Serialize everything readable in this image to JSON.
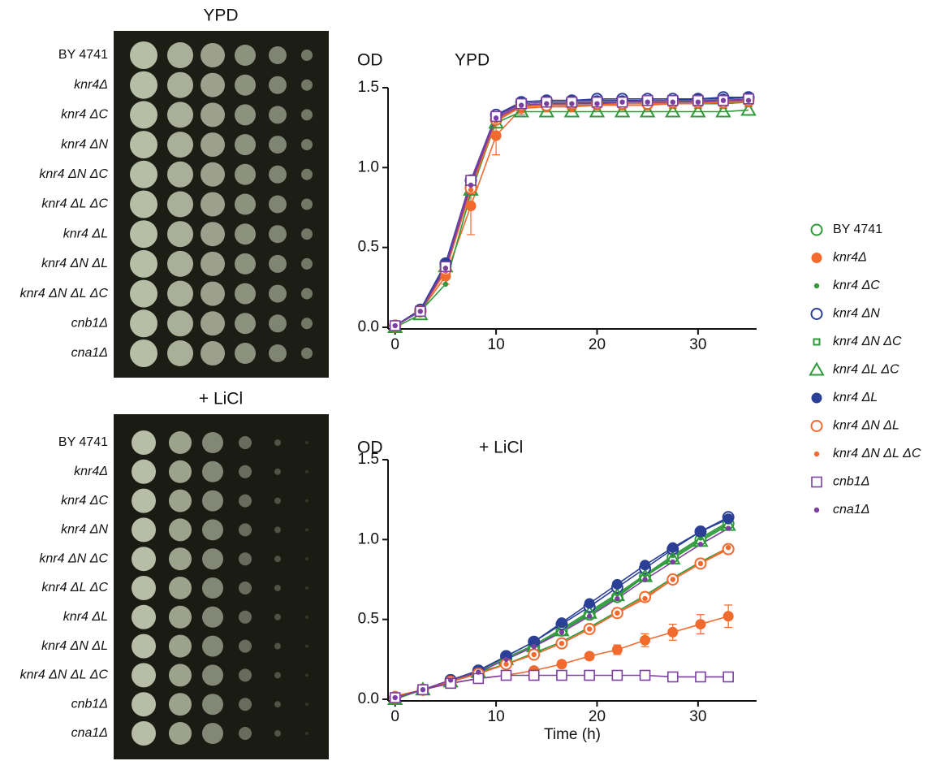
{
  "plates": [
    {
      "title": "YPD",
      "strains": [
        "BY 4741",
        "knr4Δ",
        "knr4 ΔC",
        "knr4 ΔN",
        "knr4 ΔN ΔC",
        "knr4 ΔL ΔC",
        "knr4 ΔL",
        "knr4 ΔN ΔL",
        "knr4 ΔN ΔL ΔC",
        "cnb1Δ",
        "cna1Δ"
      ]
    },
    {
      "title": "+ LiCl",
      "strains": [
        "BY 4741",
        "knr4Δ",
        "knr4 ΔC",
        "knr4 ΔN",
        "knr4 ΔN ΔC",
        "knr4 ΔL ΔC",
        "knr4 ΔL",
        "knr4 ΔN ΔL",
        "knr4 ΔN ΔL ΔC",
        "cnb1Δ",
        "cna1Δ"
      ]
    }
  ],
  "chart_data": [
    {
      "type": "line",
      "title": "YPD",
      "y_label": "OD",
      "x": [
        0,
        2.5,
        5,
        7.5,
        10,
        12.5,
        15,
        17.5,
        20,
        22.5,
        25,
        27.5,
        30,
        32.5,
        35
      ],
      "xlim": [
        -0.7,
        35.8
      ],
      "ylim": [
        0,
        1.5
      ],
      "xticks": [
        0,
        10,
        20,
        30
      ],
      "yticks": [
        {
          "value": 0,
          "label": "0.0"
        },
        {
          "value": 0.5,
          "label": "0.5"
        },
        {
          "value": 1,
          "label": "1.0"
        },
        {
          "value": 1.5,
          "label": "1.5"
        }
      ],
      "series": [
        {
          "name": "BY 4741",
          "color": "#2e9a3a",
          "marker": "open-circle",
          "values": [
            0.01,
            0.1,
            0.38,
            0.88,
            1.3,
            1.39,
            1.4,
            1.4,
            1.41,
            1.41,
            1.41,
            1.41,
            1.42,
            1.42,
            1.43
          ]
        },
        {
          "name": "knr4Δ",
          "color": "#f26a2e",
          "marker": "filled-circle",
          "values": [
            0.01,
            0.1,
            0.32,
            0.76,
            1.2,
            1.37,
            1.38,
            1.38,
            1.39,
            1.39,
            1.39,
            1.4,
            1.4,
            1.4,
            1.41
          ],
          "errors": [
            0.01,
            0.02,
            0.05,
            0.18,
            0.12,
            0.04,
            0.03,
            0.03,
            0.03,
            0.03,
            0.03,
            0.03,
            0.03,
            0.03,
            0.03
          ]
        },
        {
          "name": "knr4 ΔC",
          "color": "#2e9a3a",
          "marker": "dot",
          "values": [
            0.01,
            0.1,
            0.27,
            0.84,
            1.29,
            1.39,
            1.4,
            1.4,
            1.4,
            1.41,
            1.41,
            1.41,
            1.41,
            1.42,
            1.42
          ]
        },
        {
          "name": "knr4 ΔN",
          "color": "#2b3f97",
          "marker": "open-circle",
          "values": [
            0.01,
            0.11,
            0.4,
            0.92,
            1.33,
            1.41,
            1.42,
            1.42,
            1.43,
            1.43,
            1.43,
            1.43,
            1.43,
            1.44,
            1.44
          ]
        },
        {
          "name": "knr4 ΔN ΔC",
          "color": "#2e9a3a",
          "marker": "small-square",
          "values": [
            0.01,
            0.1,
            0.37,
            0.9,
            1.31,
            1.38,
            1.39,
            1.39,
            1.39,
            1.4,
            1.4,
            1.4,
            1.4,
            1.4,
            1.41
          ]
        },
        {
          "name": "knr4 ΔL ΔC",
          "color": "#2e9a3a",
          "marker": "triangle",
          "values": [
            0.0,
            0.08,
            0.38,
            0.86,
            1.28,
            1.35,
            1.35,
            1.35,
            1.35,
            1.35,
            1.35,
            1.35,
            1.35,
            1.35,
            1.36
          ]
        },
        {
          "name": "knr4 ΔL",
          "color": "#2b3f97",
          "marker": "filled-circle",
          "values": [
            0.01,
            0.11,
            0.4,
            0.9,
            1.32,
            1.41,
            1.42,
            1.42,
            1.42,
            1.42,
            1.42,
            1.42,
            1.43,
            1.43,
            1.44
          ]
        },
        {
          "name": "knr4 ΔN ΔL",
          "color": "#f26a2e",
          "marker": "open-circle",
          "values": [
            0.01,
            0.1,
            0.36,
            0.87,
            1.3,
            1.39,
            1.39,
            1.4,
            1.4,
            1.4,
            1.4,
            1.41,
            1.41,
            1.41,
            1.42
          ]
        },
        {
          "name": "knr4 ΔN ΔL ΔC",
          "color": "#f26a2e",
          "marker": "dot",
          "values": [
            0.01,
            0.1,
            0.35,
            0.86,
            1.29,
            1.38,
            1.39,
            1.39,
            1.39,
            1.4,
            1.4,
            1.4,
            1.4,
            1.41,
            1.41
          ]
        },
        {
          "name": "cnb1Δ",
          "color": "#7b3fa0",
          "marker": "open-square",
          "values": [
            0.01,
            0.1,
            0.38,
            0.92,
            1.32,
            1.4,
            1.41,
            1.41,
            1.41,
            1.41,
            1.42,
            1.42,
            1.42,
            1.42,
            1.43
          ]
        },
        {
          "name": "cna1Δ",
          "color": "#7b3fa0",
          "marker": "dot",
          "values": [
            0.01,
            0.1,
            0.37,
            0.89,
            1.31,
            1.39,
            1.4,
            1.4,
            1.4,
            1.41,
            1.41,
            1.41,
            1.41,
            1.42,
            1.42
          ]
        }
      ]
    },
    {
      "type": "line",
      "title": "+ LiCl",
      "y_label": "OD",
      "x_label": "Time (h)",
      "x": [
        0,
        2.75,
        5.5,
        8.25,
        11,
        13.75,
        16.5,
        19.25,
        22,
        24.75,
        27.5,
        30.25,
        33
      ],
      "xlim": [
        -0.7,
        35.8
      ],
      "ylim": [
        0,
        1.5
      ],
      "xticks": [
        0,
        10,
        20,
        30
      ],
      "yticks": [
        {
          "value": 0,
          "label": "0.0"
        },
        {
          "value": 0.5,
          "label": "0.5"
        },
        {
          "value": 1,
          "label": "1.0"
        },
        {
          "value": 1.5,
          "label": "1.5"
        }
      ],
      "series": [
        {
          "color": "#2e9a3a",
          "marker": "open-circle",
          "values": [
            0.01,
            0.06,
            0.12,
            0.17,
            0.25,
            0.33,
            0.43,
            0.53,
            0.64,
            0.77,
            0.89,
            1.0,
            1.1
          ]
        },
        {
          "color": "#f26a2e",
          "marker": "filled-circle",
          "values": [
            0.02,
            0.06,
            0.1,
            0.13,
            0.15,
            0.18,
            0.22,
            0.27,
            0.31,
            0.37,
            0.42,
            0.47,
            0.52
          ],
          "errors": [
            0.01,
            0.01,
            0.01,
            0.01,
            0.01,
            0.02,
            0.02,
            0.02,
            0.03,
            0.04,
            0.05,
            0.06,
            0.07
          ]
        },
        {
          "color": "#2e9a3a",
          "marker": "dot",
          "values": [
            0.01,
            0.06,
            0.12,
            0.18,
            0.26,
            0.34,
            0.44,
            0.55,
            0.66,
            0.78,
            0.9,
            1.01,
            1.11
          ]
        },
        {
          "color": "#2b3f97",
          "marker": "open-circle",
          "values": [
            0.01,
            0.06,
            0.12,
            0.18,
            0.27,
            0.36,
            0.47,
            0.58,
            0.7,
            0.82,
            0.94,
            1.05,
            1.14
          ]
        },
        {
          "color": "#2e9a3a",
          "marker": "small-square",
          "values": [
            0.01,
            0.06,
            0.11,
            0.17,
            0.22,
            0.29,
            0.36,
            0.45,
            0.55,
            0.65,
            0.76,
            0.86,
            0.95
          ]
        },
        {
          "color": "#2e9a3a",
          "marker": "triangle",
          "values": [
            0.0,
            0.06,
            0.11,
            0.17,
            0.25,
            0.33,
            0.43,
            0.54,
            0.65,
            0.77,
            0.88,
            0.99,
            1.09
          ]
        },
        {
          "color": "#2b3f97",
          "marker": "filled-circle",
          "values": [
            0.01,
            0.06,
            0.12,
            0.18,
            0.27,
            0.36,
            0.48,
            0.6,
            0.72,
            0.84,
            0.95,
            1.05,
            1.13
          ]
        },
        {
          "color": "#f26a2e",
          "marker": "open-circle",
          "values": [
            0.01,
            0.06,
            0.11,
            0.16,
            0.22,
            0.28,
            0.35,
            0.44,
            0.54,
            0.64,
            0.75,
            0.85,
            0.94
          ]
        },
        {
          "color": "#f26a2e",
          "marker": "dot",
          "values": [
            0.01,
            0.06,
            0.11,
            0.16,
            0.22,
            0.28,
            0.35,
            0.44,
            0.54,
            0.63,
            0.75,
            0.85,
            0.95
          ]
        },
        {
          "color": "#7b3fa0",
          "marker": "open-square",
          "values": [
            0.01,
            0.06,
            0.1,
            0.13,
            0.15,
            0.15,
            0.15,
            0.15,
            0.15,
            0.15,
            0.14,
            0.14,
            0.14
          ]
        },
        {
          "color": "#7b3fa0",
          "marker": "dot",
          "values": [
            0.01,
            0.06,
            0.12,
            0.17,
            0.25,
            0.33,
            0.42,
            0.52,
            0.63,
            0.75,
            0.86,
            0.97,
            1.07
          ]
        }
      ]
    }
  ]
}
